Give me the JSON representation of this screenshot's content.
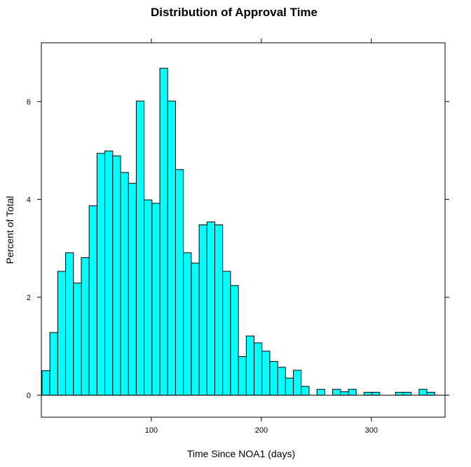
{
  "chart_data": {
    "type": "bar",
    "title": "Distribution of Approval Time",
    "xlabel": "Time Since NOA1 (days)",
    "ylabel": "Percent of Total",
    "xlim": [
      0,
      367
    ],
    "ylim": [
      -0.45,
      7.2
    ],
    "x_ticks": [
      100,
      200,
      300
    ],
    "y_ticks": [
      0,
      2,
      4,
      6
    ],
    "bin_width": 7.14,
    "bar_color": "#00ffff",
    "edge_color": "#000000",
    "bins": [
      {
        "x0": 0.0,
        "x1": 0.62,
        "value": 0.22
      },
      {
        "x0": 0.62,
        "x1": 7.76,
        "value": 0.5
      },
      {
        "x0": 7.76,
        "x1": 14.9,
        "value": 1.28
      },
      {
        "x0": 14.9,
        "x1": 22.04,
        "value": 2.53
      },
      {
        "x0": 22.04,
        "x1": 29.18,
        "value": 2.91
      },
      {
        "x0": 29.18,
        "x1": 36.32,
        "value": 2.29
      },
      {
        "x0": 36.32,
        "x1": 43.46,
        "value": 2.81
      },
      {
        "x0": 43.46,
        "x1": 50.6,
        "value": 3.87
      },
      {
        "x0": 50.6,
        "x1": 57.74,
        "value": 4.94
      },
      {
        "x0": 57.74,
        "x1": 64.88,
        "value": 4.99
      },
      {
        "x0": 64.88,
        "x1": 72.02,
        "value": 4.89
      },
      {
        "x0": 72.02,
        "x1": 79.16,
        "value": 4.55
      },
      {
        "x0": 79.16,
        "x1": 86.3,
        "value": 4.33
      },
      {
        "x0": 86.3,
        "x1": 93.44,
        "value": 6.01
      },
      {
        "x0": 93.44,
        "x1": 100.58,
        "value": 3.99
      },
      {
        "x0": 100.58,
        "x1": 107.72,
        "value": 3.92
      },
      {
        "x0": 107.72,
        "x1": 114.86,
        "value": 6.68
      },
      {
        "x0": 114.86,
        "x1": 122.0,
        "value": 6.01
      },
      {
        "x0": 122.0,
        "x1": 129.14,
        "value": 4.61
      },
      {
        "x0": 129.14,
        "x1": 136.28,
        "value": 2.91
      },
      {
        "x0": 136.28,
        "x1": 143.42,
        "value": 2.7
      },
      {
        "x0": 143.42,
        "x1": 150.56,
        "value": 3.48
      },
      {
        "x0": 150.56,
        "x1": 157.7,
        "value": 3.54
      },
      {
        "x0": 157.7,
        "x1": 164.84,
        "value": 3.48
      },
      {
        "x0": 164.84,
        "x1": 171.98,
        "value": 2.53
      },
      {
        "x0": 171.98,
        "x1": 179.12,
        "value": 2.24
      },
      {
        "x0": 179.12,
        "x1": 186.26,
        "value": 0.79
      },
      {
        "x0": 186.26,
        "x1": 193.4,
        "value": 1.21
      },
      {
        "x0": 193.4,
        "x1": 200.54,
        "value": 1.07
      },
      {
        "x0": 200.54,
        "x1": 207.68,
        "value": 0.9
      },
      {
        "x0": 207.68,
        "x1": 214.82,
        "value": 0.69
      },
      {
        "x0": 214.82,
        "x1": 221.96,
        "value": 0.57
      },
      {
        "x0": 221.96,
        "x1": 229.1,
        "value": 0.35
      },
      {
        "x0": 229.1,
        "x1": 236.24,
        "value": 0.51
      },
      {
        "x0": 236.24,
        "x1": 243.38,
        "value": 0.18
      },
      {
        "x0": 250.52,
        "x1": 257.66,
        "value": 0.12
      },
      {
        "x0": 264.8,
        "x1": 271.94,
        "value": 0.12
      },
      {
        "x0": 271.94,
        "x1": 279.08,
        "value": 0.07
      },
      {
        "x0": 279.08,
        "x1": 286.22,
        "value": 0.12
      },
      {
        "x0": 293.36,
        "x1": 300.5,
        "value": 0.06
      },
      {
        "x0": 300.5,
        "x1": 307.64,
        "value": 0.06
      },
      {
        "x0": 321.92,
        "x1": 329.06,
        "value": 0.06
      },
      {
        "x0": 329.06,
        "x1": 336.2,
        "value": 0.06
      },
      {
        "x0": 343.34,
        "x1": 350.48,
        "value": 0.12
      },
      {
        "x0": 350.48,
        "x1": 357.62,
        "value": 0.06
      }
    ],
    "grid": false,
    "legend": "none"
  }
}
